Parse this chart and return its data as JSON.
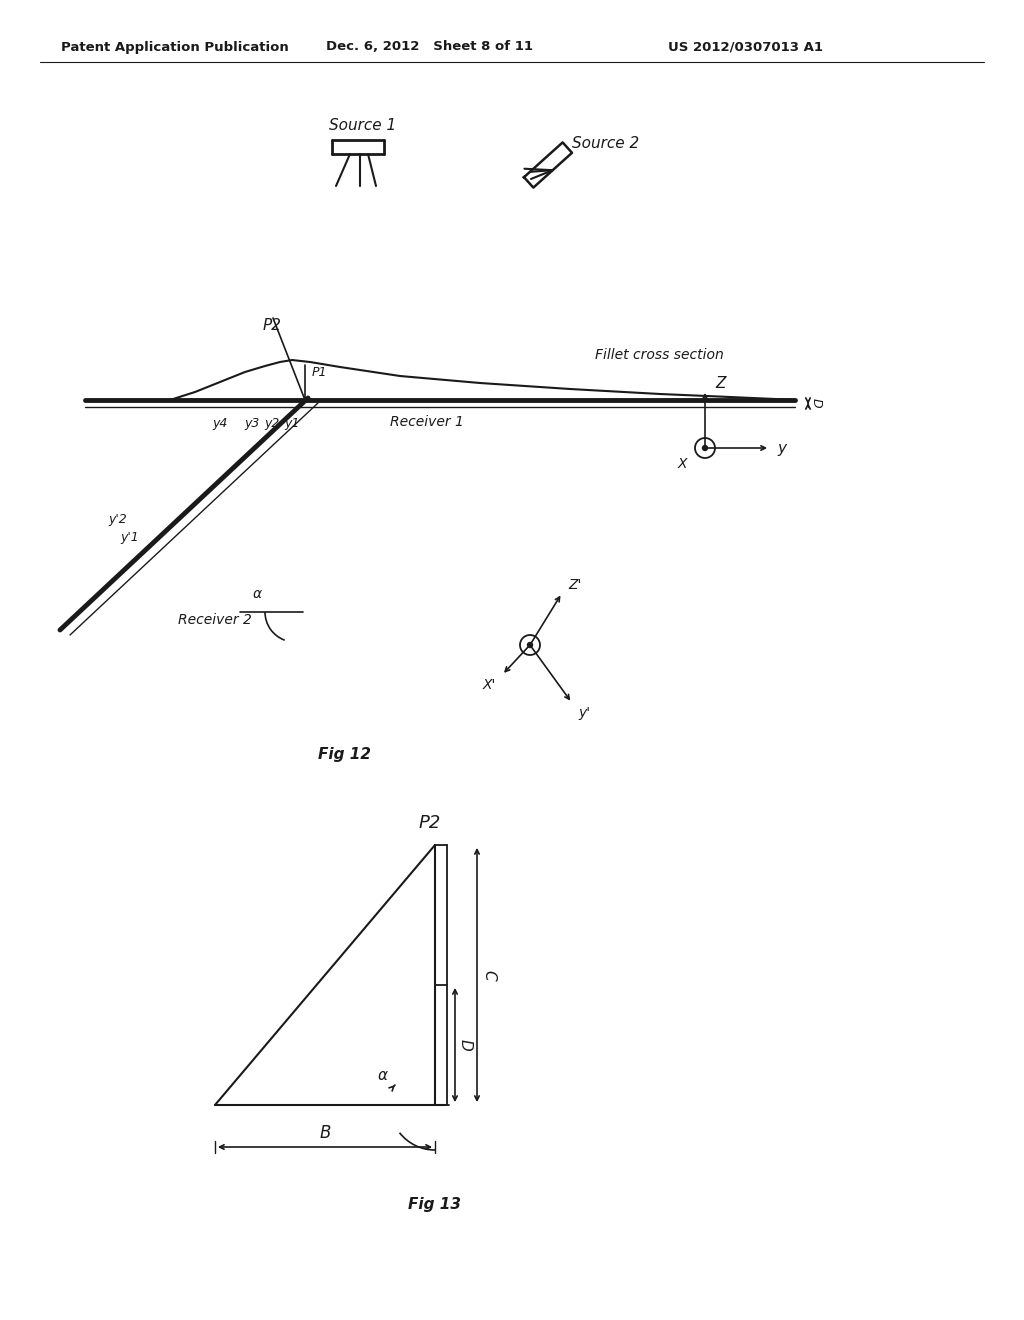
{
  "bg_color": "#ffffff",
  "line_color": "#1a1a1a",
  "text_color": "#1a1a1a",
  "header_left": "Patent Application Publication",
  "header_mid": "Dec. 6, 2012   Sheet 8 of 11",
  "header_right": "US 2012/0307013 A1",
  "fig12_label": "Fig 12",
  "fig13_label": "Fig 13"
}
